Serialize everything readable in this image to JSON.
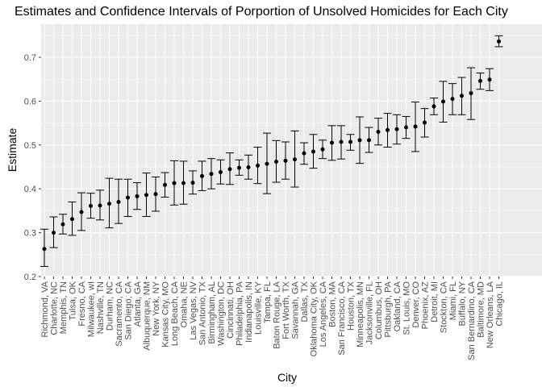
{
  "chart_data": {
    "type": "scatter",
    "title": "Estimates and Confidence Intervals of Porportion of Unsolved Homicides for Each City",
    "xlabel": "City",
    "ylabel": "Estimate",
    "ylim": [
      0.2,
      0.75
    ],
    "yticks": [
      "0.2",
      "0.3",
      "0.4",
      "0.5",
      "0.6",
      "0.7"
    ],
    "grid": true,
    "style": {
      "panel_bg": "#ebebeb",
      "grid_major": "#ffffff",
      "point_color": "#000000",
      "errorbar_color": "#000000"
    },
    "categories": [
      "Richmond, VA",
      "Charlotte, NC",
      "Memphis, TN",
      "Tulsa, OK",
      "Fresno, CA",
      "Milwaukee, wI",
      "Nashville, TN",
      "Durham, NC",
      "Sacramento, CA",
      "San Diego, CA",
      "Atlanta, GA",
      "Albuquerque, NM",
      "New York, NY",
      "Kansas City, MO",
      "Long Beach, CA",
      "Omaha, NE",
      "Las Vegas, NV",
      "San Antonio, TX",
      "Birmingham, AL",
      "Washington, DC",
      "Cincinnati, OH",
      "Philadelphia, PA",
      "Indianapolis, IN",
      "Louisville, KY",
      "Tampa, FL",
      "Baton Rouge, LA",
      "Fort Worth, TX",
      "Savannah, GA",
      "Dallas, TX",
      "Oklahoma City, OK",
      "Los Angeles, CA",
      "Boston, MA",
      "San Francisco, CA",
      "Houston, TX",
      "Minneapolis, MN",
      "Jacksonville, FL",
      "Columbus, OH",
      "Pittsburgh, PA",
      "Oakland, CA",
      "St. Louis, MO",
      "Denver, CO",
      "Phoenix, AZ",
      "Detroit, MI",
      "Stockton, CA",
      "Miami, FL",
      "Buffalo, NY",
      "San Bernardino, CA",
      "Baltimore, MD",
      "New Orleans, LA",
      "Chicago, IL"
    ],
    "estimate": [
      0.263,
      0.3,
      0.319,
      0.331,
      0.347,
      0.361,
      0.362,
      0.366,
      0.37,
      0.38,
      0.383,
      0.386,
      0.388,
      0.409,
      0.413,
      0.413,
      0.414,
      0.429,
      0.434,
      0.438,
      0.445,
      0.448,
      0.449,
      0.453,
      0.457,
      0.462,
      0.464,
      0.467,
      0.481,
      0.485,
      0.49,
      0.505,
      0.507,
      0.507,
      0.511,
      0.511,
      0.53,
      0.534,
      0.536,
      0.54,
      0.542,
      0.551,
      0.588,
      0.599,
      0.605,
      0.612,
      0.618,
      0.646,
      0.649,
      0.736
    ],
    "conf_low": [
      0.223,
      0.266,
      0.297,
      0.294,
      0.305,
      0.333,
      0.329,
      0.311,
      0.321,
      0.337,
      0.353,
      0.337,
      0.349,
      0.381,
      0.363,
      0.365,
      0.388,
      0.396,
      0.4,
      0.411,
      0.41,
      0.431,
      0.422,
      0.412,
      0.389,
      0.415,
      0.422,
      0.404,
      0.456,
      0.447,
      0.469,
      0.465,
      0.468,
      0.488,
      0.458,
      0.483,
      0.5,
      0.495,
      0.502,
      0.515,
      0.485,
      0.518,
      0.569,
      0.552,
      0.569,
      0.569,
      0.558,
      0.627,
      0.624,
      0.724
    ],
    "conf_high": [
      0.308,
      0.336,
      0.342,
      0.37,
      0.391,
      0.39,
      0.397,
      0.424,
      0.422,
      0.422,
      0.414,
      0.436,
      0.427,
      0.437,
      0.464,
      0.463,
      0.441,
      0.463,
      0.469,
      0.466,
      0.482,
      0.466,
      0.477,
      0.495,
      0.527,
      0.51,
      0.507,
      0.532,
      0.505,
      0.524,
      0.511,
      0.544,
      0.544,
      0.524,
      0.564,
      0.54,
      0.561,
      0.572,
      0.569,
      0.565,
      0.598,
      0.583,
      0.607,
      0.645,
      0.64,
      0.654,
      0.676,
      0.664,
      0.674,
      0.749
    ]
  }
}
